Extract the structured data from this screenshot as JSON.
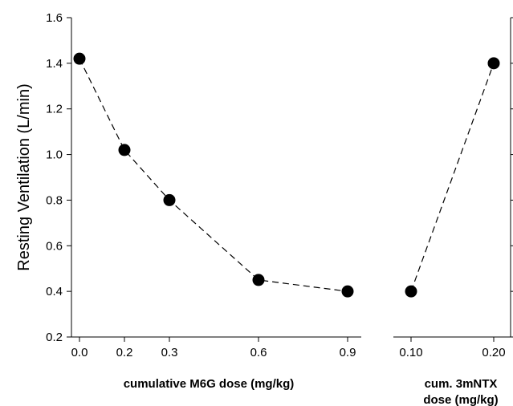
{
  "chart_data": [
    {
      "type": "scatter",
      "panel": "left",
      "xlabel": "cumulative M6G dose (mg/kg)",
      "ylabel": "Resting Ventilation (L/min)",
      "x_tick_labels": [
        "0.0",
        "0.2",
        "0.3",
        "0.6",
        "0.9"
      ],
      "y_tick_labels": [
        "0.2",
        "0.4",
        "0.6",
        "0.8",
        "1.0",
        "1.2",
        "1.4",
        "1.6"
      ],
      "ylim": [
        0.2,
        1.6
      ],
      "connector": "dashed",
      "series": [
        {
          "x": [
            "0.0",
            "0.2",
            "0.3",
            "0.6",
            "0.9"
          ],
          "values": [
            1.42,
            1.02,
            0.8,
            0.45,
            0.4
          ]
        }
      ]
    },
    {
      "type": "scatter",
      "panel": "right",
      "xlabel_lines": [
        "cum. 3mNTX",
        "dose (mg/kg)"
      ],
      "x_tick_labels": [
        "0.10",
        "0.20"
      ],
      "ylim": [
        0.2,
        1.6
      ],
      "connector": "dashed",
      "series": [
        {
          "x": [
            "0.10",
            "0.20"
          ],
          "values": [
            0.4,
            1.4
          ]
        }
      ]
    }
  ],
  "colors": {
    "marker": "#000000",
    "line": "#000000"
  }
}
